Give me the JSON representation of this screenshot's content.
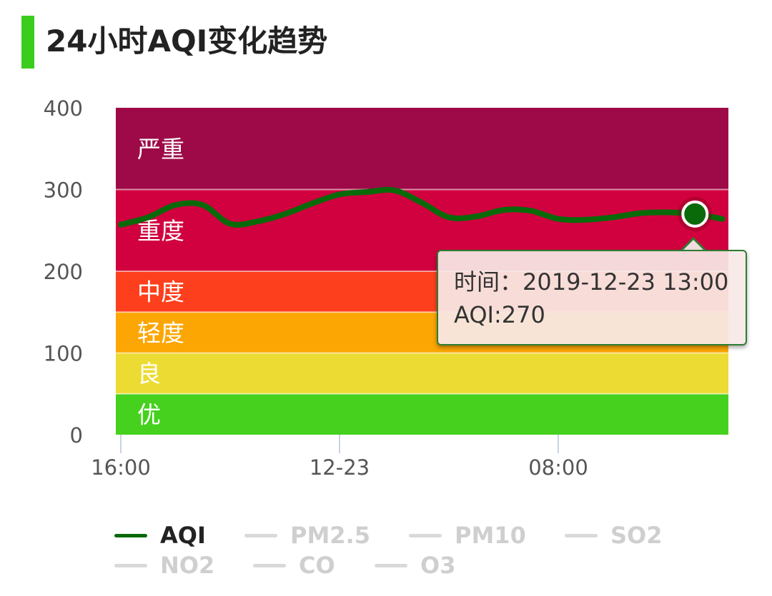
{
  "header": {
    "title": "24小时AQI变化趋势"
  },
  "chart_data": {
    "type": "line",
    "ylim": [
      0,
      400
    ],
    "y_ticks": [
      "0",
      "100",
      "200",
      "300",
      "400"
    ],
    "x_tick_labels": [
      {
        "label": "16:00",
        "hour_index": 0
      },
      {
        "label": "12-23",
        "hour_index": 8
      },
      {
        "label": "08:00",
        "hour_index": 16
      }
    ],
    "bands": [
      {
        "label": "优",
        "from": 0,
        "to": 50,
        "color": "#45d11d"
      },
      {
        "label": "良",
        "from": 50,
        "to": 100,
        "color": "#ecdb32"
      },
      {
        "label": "轻度",
        "from": 100,
        "to": 150,
        "color": "#fca603"
      },
      {
        "label": "中度",
        "from": 150,
        "to": 200,
        "color": "#fe3f1d"
      },
      {
        "label": "重度",
        "from": 200,
        "to": 300,
        "color": "#d1003f"
      },
      {
        "label": "严重",
        "from": 300,
        "to": 400,
        "color": "#9e0a48"
      }
    ],
    "series": [
      {
        "name": "AQI",
        "color": "#0a6a0a",
        "x": [
          "16:00",
          "17:00",
          "18:00",
          "19:00",
          "20:00",
          "21:00",
          "22:00",
          "23:00",
          "00:00",
          "01:00",
          "02:00",
          "03:00",
          "04:00",
          "05:00",
          "06:00",
          "07:00",
          "08:00",
          "09:00",
          "10:00",
          "11:00",
          "12:00",
          "13:00",
          "14:00"
        ],
        "values": [
          257,
          266,
          281,
          281,
          258,
          261,
          270,
          283,
          294,
          297,
          299,
          284,
          266,
          267,
          275,
          274,
          264,
          263,
          266,
          271,
          272,
          270,
          264
        ]
      }
    ],
    "highlight": {
      "index": 21,
      "value": 270
    }
  },
  "tooltip": {
    "time_text": "时间：2019-12-23 13:00",
    "value_text": "AQI:270"
  },
  "legend": [
    {
      "label": "AQI",
      "active": true,
      "color": "#0a6a0a"
    },
    {
      "label": "PM2.5",
      "active": false,
      "color": "#d9d9d9"
    },
    {
      "label": "PM10",
      "active": false,
      "color": "#d9d9d9"
    },
    {
      "label": "SO2",
      "active": false,
      "color": "#d9d9d9"
    },
    {
      "label": "NO2",
      "active": false,
      "color": "#d9d9d9"
    },
    {
      "label": "CO",
      "active": false,
      "color": "#d9d9d9"
    },
    {
      "label": "O3",
      "active": false,
      "color": "#d9d9d9"
    }
  ]
}
